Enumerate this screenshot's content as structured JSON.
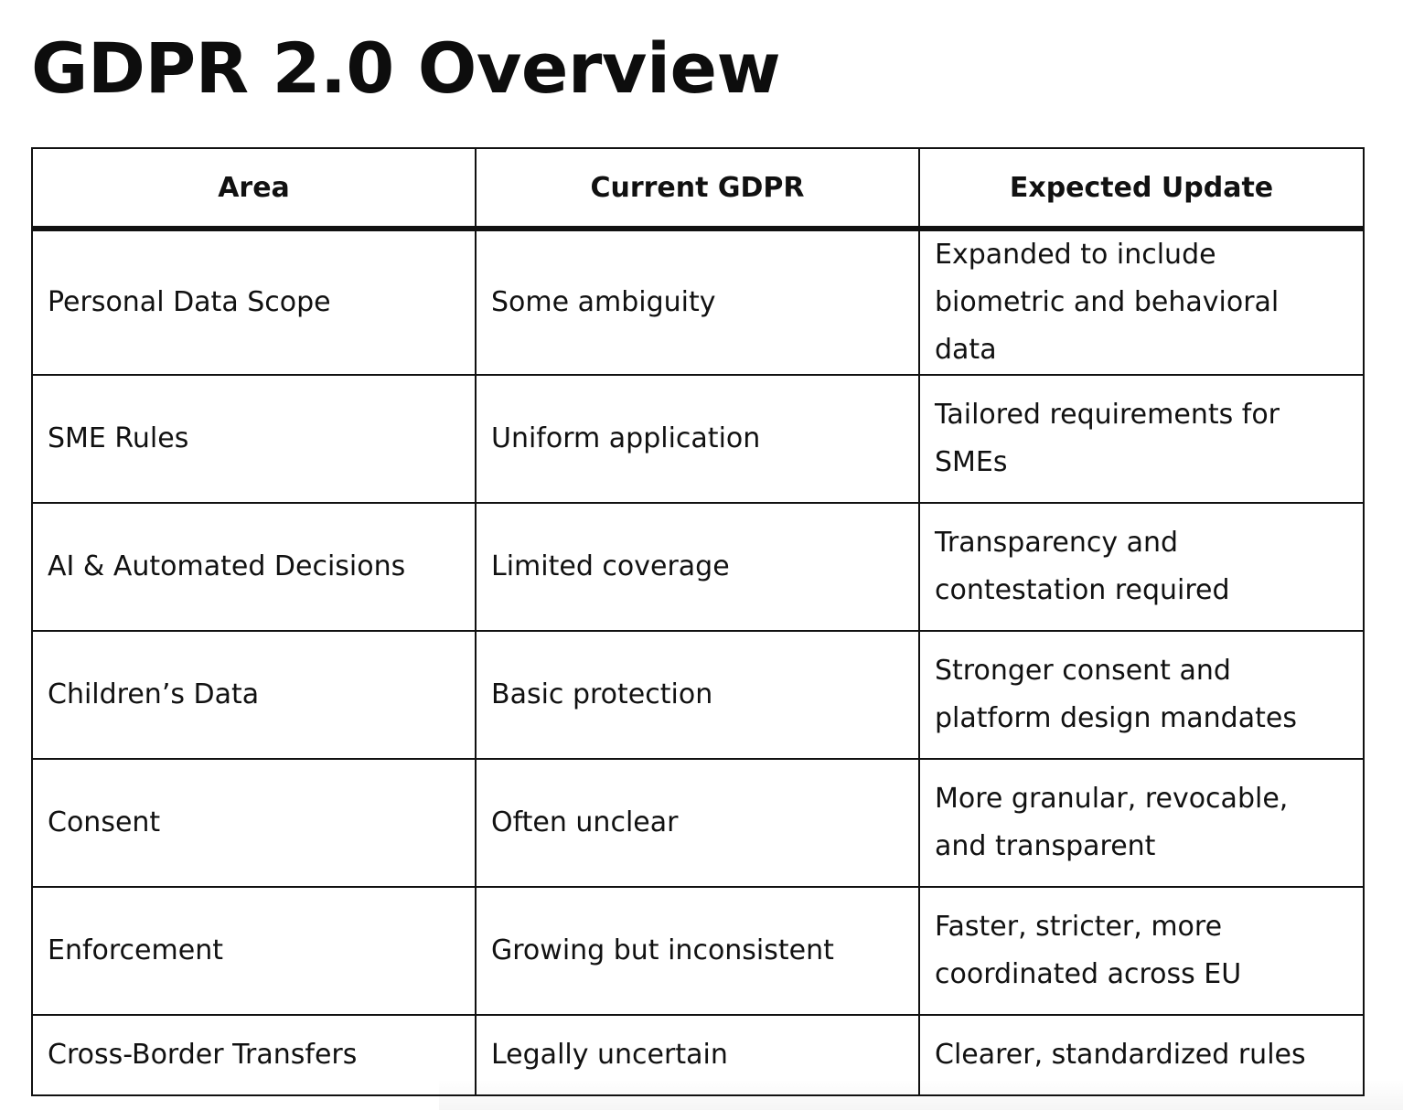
{
  "title": "GDPR 2.0 Overview",
  "table": {
    "headers": [
      "Area",
      "Current GDPR",
      "Expected Update"
    ],
    "rows": [
      [
        "Personal Data Scope",
        "Some ambiguity",
        "Expanded to include biometric and behavioral data"
      ],
      [
        "SME Rules",
        "Uniform application",
        "Tailored requirements for SMEs"
      ],
      [
        "AI & Automated Decisions",
        "Limited coverage",
        "Transparency and contestation required"
      ],
      [
        "Children’s Data",
        "Basic protection",
        "Stronger consent and platform design mandates"
      ],
      [
        "Consent",
        "Often unclear",
        "More granular, revocable, and transparent"
      ],
      [
        "Enforcement",
        "Growing but inconsistent",
        "Faster, stricter, more coordinated across EU"
      ],
      [
        "Cross-Border Transfers",
        "Legally uncertain",
        "Clearer, standardized rules"
      ]
    ]
  }
}
